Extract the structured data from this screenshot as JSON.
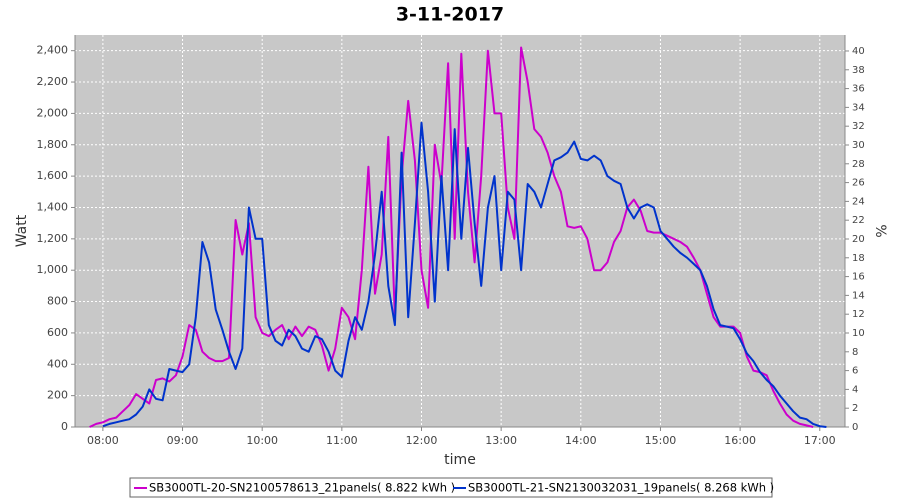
{
  "chart_data": {
    "type": "line",
    "title": "3-11-2017",
    "x_label": "time",
    "y_label": "Watt",
    "y2_label": "%",
    "x": [
      "07:50",
      "07:55",
      "08:00",
      "08:05",
      "08:10",
      "08:15",
      "08:20",
      "08:25",
      "08:30",
      "08:35",
      "08:40",
      "08:45",
      "08:50",
      "08:55",
      "09:00",
      "09:05",
      "09:10",
      "09:15",
      "09:20",
      "09:25",
      "09:30",
      "09:35",
      "09:40",
      "09:45",
      "09:50",
      "09:55",
      "10:00",
      "10:05",
      "10:10",
      "10:15",
      "10:20",
      "10:25",
      "10:30",
      "10:35",
      "10:40",
      "10:45",
      "10:50",
      "10:55",
      "11:00",
      "11:05",
      "11:10",
      "11:15",
      "11:20",
      "11:25",
      "11:30",
      "11:35",
      "11:40",
      "11:45",
      "11:50",
      "11:55",
      "12:00",
      "12:05",
      "12:10",
      "12:15",
      "12:20",
      "12:25",
      "12:30",
      "12:35",
      "12:40",
      "12:45",
      "12:50",
      "12:55",
      "13:00",
      "13:05",
      "13:10",
      "13:15",
      "13:20",
      "13:25",
      "13:30",
      "13:35",
      "13:40",
      "13:45",
      "13:50",
      "13:55",
      "14:00",
      "14:05",
      "14:10",
      "14:15",
      "14:20",
      "14:25",
      "14:30",
      "14:35",
      "14:40",
      "14:45",
      "14:50",
      "14:55",
      "15:00",
      "15:05",
      "15:10",
      "15:15",
      "15:20",
      "15:25",
      "15:30",
      "15:35",
      "15:40",
      "15:45",
      "15:50",
      "15:55",
      "16:00",
      "16:05",
      "16:10",
      "16:15",
      "16:20",
      "16:25",
      "16:30",
      "16:35",
      "16:40",
      "16:45",
      "16:50",
      "16:55",
      "17:00",
      "17:05"
    ],
    "series": [
      {
        "name": "SB3000TL-20-SN2100578613_21panels( 8.822 kWh )",
        "color": "#cc00cc",
        "values": [
          0,
          20,
          30,
          50,
          60,
          100,
          140,
          210,
          180,
          150,
          300,
          310,
          290,
          330,
          450,
          650,
          620,
          480,
          440,
          420,
          420,
          440,
          1320,
          1100,
          1300,
          700,
          600,
          580,
          620,
          650,
          560,
          640,
          580,
          640,
          620,
          520,
          360,
          500,
          760,
          700,
          560,
          1000,
          1660,
          850,
          1100,
          1850,
          700,
          1600,
          2080,
          1700,
          1000,
          760,
          1800,
          1550,
          2320,
          1200,
          2380,
          1500,
          1050,
          1600,
          2400,
          2000,
          2000,
          1400,
          1200,
          2420,
          2200,
          1900,
          1850,
          1750,
          1600,
          1500,
          1280,
          1270,
          1280,
          1200,
          1000,
          1000,
          1050,
          1180,
          1250,
          1400,
          1450,
          1380,
          1250,
          1240,
          1240,
          1220,
          1200,
          1180,
          1150,
          1080,
          1000,
          850,
          700,
          640,
          640,
          640,
          600,
          450,
          360,
          350,
          330,
          230,
          150,
          80,
          40,
          20,
          10,
          0,
          null,
          null
        ]
      },
      {
        "name": "SB3000TL-21-SN2130032031_19panels( 8.268 kWh )",
        "color": "#0033cc",
        "values": [
          null,
          null,
          5,
          20,
          30,
          40,
          50,
          80,
          130,
          240,
          180,
          170,
          370,
          360,
          350,
          400,
          700,
          1180,
          1050,
          750,
          620,
          480,
          370,
          500,
          1400,
          1200,
          1200,
          650,
          550,
          520,
          620,
          580,
          500,
          480,
          580,
          560,
          480,
          360,
          320,
          550,
          700,
          620,
          800,
          1100,
          1500,
          900,
          650,
          1750,
          700,
          1300,
          1940,
          1500,
          800,
          1600,
          1000,
          1900,
          1200,
          1780,
          1300,
          900,
          1400,
          1600,
          1000,
          1500,
          1450,
          1000,
          1550,
          1500,
          1400,
          1550,
          1700,
          1720,
          1750,
          1820,
          1710,
          1700,
          1730,
          1700,
          1600,
          1570,
          1550,
          1400,
          1330,
          1400,
          1420,
          1400,
          1250,
          1200,
          1150,
          1110,
          1080,
          1040,
          1000,
          900,
          750,
          650,
          640,
          630,
          560,
          470,
          420,
          350,
          300,
          260,
          200,
          150,
          100,
          60,
          50,
          20,
          5,
          0
        ]
      }
    ],
    "xlim": [
      "07:39",
      "17:19"
    ],
    "xticks": [
      "08:00",
      "09:00",
      "10:00",
      "11:00",
      "12:00",
      "13:00",
      "14:00",
      "15:00",
      "16:00",
      "17:00"
    ],
    "ylim": [
      0,
      2500
    ],
    "yticks": [
      0,
      200,
      400,
      600,
      800,
      {
        "value": 1000,
        "label": "1,000"
      },
      {
        "value": 1200,
        "label": "1,200"
      },
      {
        "value": 1400,
        "label": "1,400"
      },
      {
        "value": 1600,
        "label": "1,600"
      },
      {
        "value": 1800,
        "label": "1,800"
      },
      {
        "value": 2000,
        "label": "2,000"
      },
      {
        "value": 2200,
        "label": "2,200"
      },
      {
        "value": 2400,
        "label": "2,400"
      }
    ],
    "y2lim": [
      0,
      41.7
    ],
    "y2ticks": [
      0,
      2,
      4,
      6,
      8,
      10,
      12,
      14,
      16,
      18,
      20,
      22,
      24,
      26,
      28,
      30,
      32,
      34,
      36,
      38,
      40
    ],
    "grid": true
  }
}
